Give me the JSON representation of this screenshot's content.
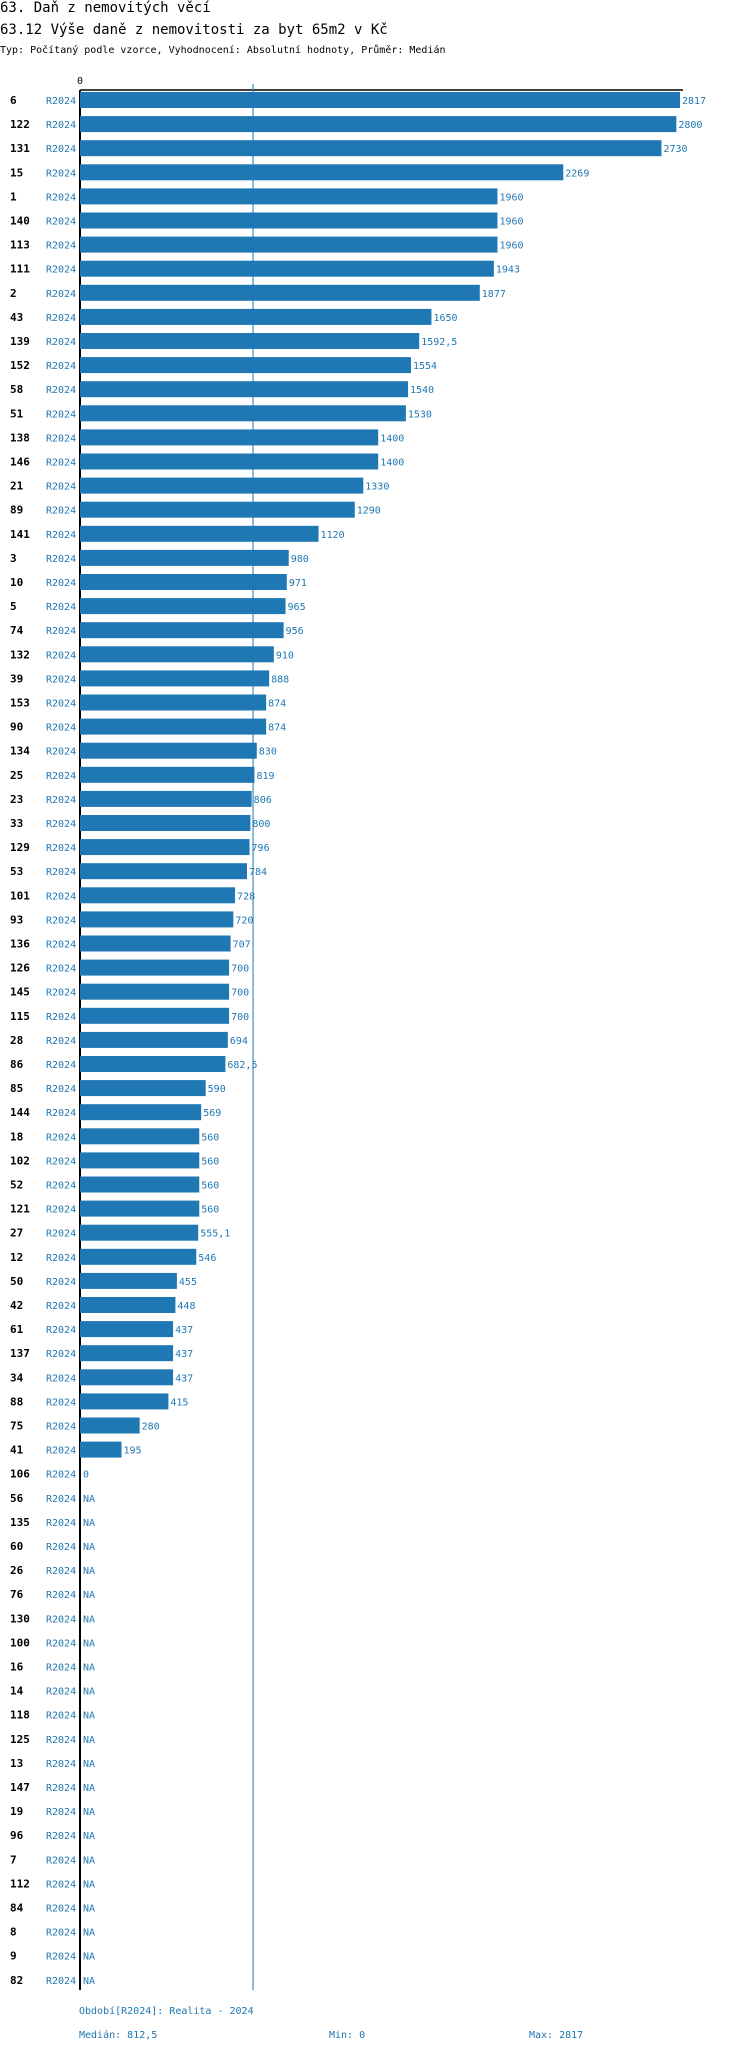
{
  "header": {
    "section": "63. Daň z nemovitých věcí",
    "title": "63.12 Výše daně z nemovitosti za byt 65m2 v Kč",
    "subtitle": "Typ: Počítaný podle vzorce, Vyhodnocení: Absolutní hodnoty, Průměr: Medián"
  },
  "colors": {
    "bar": "#1f77b4",
    "text": "#1f77b4",
    "axis": "#000000"
  },
  "chart_data": {
    "type": "bar",
    "orientation": "horizontal",
    "title": "63.12 Výše daně z nemovitosti za byt 65m2 v Kč",
    "axis_tick_label": "0",
    "xlim": [
      0,
      2817
    ],
    "median_line": 812.5,
    "categories": [
      "6",
      "122",
      "131",
      "15",
      "1",
      "140",
      "113",
      "111",
      "2",
      "43",
      "139",
      "152",
      "58",
      "51",
      "138",
      "146",
      "21",
      "89",
      "141",
      "3",
      "10",
      "5",
      "74",
      "132",
      "39",
      "153",
      "90",
      "134",
      "25",
      "23",
      "33",
      "129",
      "53",
      "101",
      "93",
      "136",
      "126",
      "145",
      "115",
      "28",
      "86",
      "85",
      "144",
      "18",
      "102",
      "52",
      "121",
      "27",
      "12",
      "50",
      "42",
      "61",
      "137",
      "34",
      "88",
      "75",
      "41",
      "106",
      "56",
      "135",
      "60",
      "26",
      "76",
      "130",
      "100",
      "16",
      "14",
      "118",
      "125",
      "13",
      "147",
      "19",
      "96",
      "7",
      "112",
      "84",
      "8",
      "9",
      "82"
    ],
    "series_label": "R2024",
    "values": [
      2817,
      2800,
      2730,
      2269,
      1960,
      1960,
      1960,
      1943,
      1877,
      1650,
      1592.5,
      1554,
      1540,
      1530,
      1400,
      1400,
      1330,
      1290,
      1120,
      980,
      971,
      965,
      956,
      910,
      888,
      874,
      874,
      830,
      819,
      806,
      800,
      796,
      784,
      728,
      720,
      707,
      700,
      700,
      700,
      694,
      682.5,
      590,
      569,
      560,
      560,
      560,
      560,
      555.1,
      546,
      455,
      448,
      437,
      437,
      437,
      415,
      280,
      195,
      0,
      null,
      null,
      null,
      null,
      null,
      null,
      null,
      null,
      null,
      null,
      null,
      null,
      null,
      null,
      null,
      null,
      null,
      null,
      null,
      null,
      null
    ],
    "value_labels": [
      "2817",
      "2800",
      "2730",
      "2269",
      "1960",
      "1960",
      "1960",
      "1943",
      "1877",
      "1650",
      "1592,5",
      "1554",
      "1540",
      "1530",
      "1400",
      "1400",
      "1330",
      "1290",
      "1120",
      "980",
      "971",
      "965",
      "956",
      "910",
      "888",
      "874",
      "874",
      "830",
      "819",
      "806",
      "800",
      "796",
      "784",
      "728",
      "720",
      "707",
      "700",
      "700",
      "700",
      "694",
      "682,5",
      "590",
      "569",
      "560",
      "560",
      "560",
      "560",
      "555,1",
      "546",
      "455",
      "448",
      "437",
      "437",
      "437",
      "415",
      "280",
      "195",
      "0",
      "NA",
      "NA",
      "NA",
      "NA",
      "NA",
      "NA",
      "NA",
      "NA",
      "NA",
      "NA",
      "NA",
      "NA",
      "NA",
      "NA",
      "NA",
      "NA",
      "NA",
      "NA",
      "NA",
      "NA",
      "NA"
    ]
  },
  "footer": {
    "period": "Období[R2024]: Realita - 2024",
    "median": "Medián: 812,5",
    "min": "Min: 0",
    "max": "Max: 2817"
  }
}
